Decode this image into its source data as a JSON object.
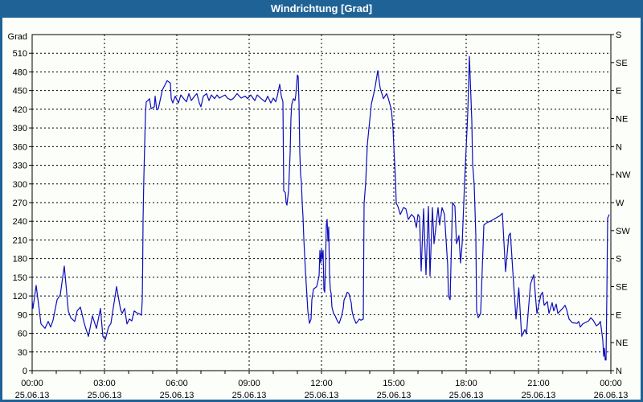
{
  "window": {
    "title": "Windrichtung [Grad]"
  },
  "colors": {
    "titlebar_bg": "#1f6396",
    "border": "#1f6396",
    "background": "#fcfefa",
    "line": "#0d0dbb",
    "grid": "#000000",
    "text": "#000000"
  },
  "chart_data": {
    "type": "line",
    "title": "Windrichtung [Grad]",
    "ylabel_left": "Grad",
    "ylim": [
      0,
      540
    ],
    "grid": "dotted",
    "legend": "none",
    "y_left_ticks": [
      0,
      30,
      60,
      90,
      120,
      150,
      180,
      210,
      240,
      270,
      300,
      330,
      360,
      390,
      420,
      450,
      480,
      510
    ],
    "y_right_ticks": [
      {
        "label": "S",
        "deg": 540
      },
      {
        "label": "SE",
        "deg": 495
      },
      {
        "label": "E",
        "deg": 450
      },
      {
        "label": "NE",
        "deg": 405
      },
      {
        "label": "N",
        "deg": 360
      },
      {
        "label": "NW",
        "deg": 315
      },
      {
        "label": "W",
        "deg": 270
      },
      {
        "label": "SW",
        "deg": 225
      },
      {
        "label": "S",
        "deg": 180
      },
      {
        "label": "SE",
        "deg": 135
      },
      {
        "label": "E",
        "deg": 90
      },
      {
        "label": "NE",
        "deg": 45
      },
      {
        "label": "N",
        "deg": 0
      }
    ],
    "x_axis": {
      "range_minutes": [
        0,
        1440
      ],
      "major_tick_minutes": 180,
      "minor_tick_minutes": 60,
      "labels": [
        {
          "minutes": 0,
          "time": "00:00",
          "date": "25.06.13"
        },
        {
          "minutes": 180,
          "time": "03:00",
          "date": "25.06.13"
        },
        {
          "minutes": 360,
          "time": "06:00",
          "date": "25.06.13"
        },
        {
          "minutes": 540,
          "time": "09:00",
          "date": "25.06.13"
        },
        {
          "minutes": 720,
          "time": "12:00",
          "date": "25.06.13"
        },
        {
          "minutes": 900,
          "time": "15:00",
          "date": "25.06.13"
        },
        {
          "minutes": 1080,
          "time": "18:00",
          "date": "25.06.13"
        },
        {
          "minutes": 1260,
          "time": "21:00",
          "date": "25.06.13"
        },
        {
          "minutes": 1440,
          "time": "00:00",
          "date": "26.06.13"
        }
      ]
    },
    "series": [
      {
        "name": "Windrichtung",
        "color": "#0d0dbb",
        "points": [
          [
            0,
            112
          ],
          [
            2,
            100
          ],
          [
            10,
            137
          ],
          [
            22,
            75
          ],
          [
            32,
            68
          ],
          [
            40,
            79
          ],
          [
            46,
            70
          ],
          [
            52,
            81
          ],
          [
            62,
            114
          ],
          [
            70,
            122
          ],
          [
            76,
            150
          ],
          [
            80,
            168
          ],
          [
            90,
            96
          ],
          [
            96,
            85
          ],
          [
            106,
            79
          ],
          [
            112,
            96
          ],
          [
            120,
            102
          ],
          [
            130,
            75
          ],
          [
            140,
            55
          ],
          [
            150,
            88
          ],
          [
            160,
            68
          ],
          [
            170,
            100
          ],
          [
            176,
            55
          ],
          [
            182,
            50
          ],
          [
            190,
            70
          ],
          [
            196,
            76
          ],
          [
            210,
            135
          ],
          [
            220,
            98
          ],
          [
            224,
            92
          ],
          [
            230,
            100
          ],
          [
            236,
            75
          ],
          [
            242,
            83
          ],
          [
            248,
            80
          ],
          [
            254,
            96
          ],
          [
            260,
            93
          ],
          [
            268,
            91
          ],
          [
            272,
            89
          ],
          [
            274,
            114
          ],
          [
            275,
            165
          ],
          [
            276,
            243
          ],
          [
            278,
            311
          ],
          [
            280,
            363
          ],
          [
            282,
            415
          ],
          [
            284,
            432
          ],
          [
            288,
            434
          ],
          [
            292,
            437
          ],
          [
            296,
            421
          ],
          [
            304,
            424
          ],
          [
            306,
            441
          ],
          [
            310,
            419
          ],
          [
            314,
            421
          ],
          [
            324,
            451
          ],
          [
            336,
            466
          ],
          [
            344,
            462
          ],
          [
            346,
            437
          ],
          [
            350,
            430
          ],
          [
            356,
            441
          ],
          [
            364,
            430
          ],
          [
            370,
            443
          ],
          [
            376,
            438
          ],
          [
            384,
            432
          ],
          [
            390,
            445
          ],
          [
            396,
            434
          ],
          [
            404,
            441
          ],
          [
            410,
            445
          ],
          [
            416,
            430
          ],
          [
            420,
            424
          ],
          [
            426,
            441
          ],
          [
            434,
            445
          ],
          [
            440,
            434
          ],
          [
            446,
            443
          ],
          [
            454,
            437
          ],
          [
            460,
            443
          ],
          [
            466,
            438
          ],
          [
            474,
            441
          ],
          [
            480,
            443
          ],
          [
            486,
            438
          ],
          [
            494,
            435
          ],
          [
            500,
            437
          ],
          [
            510,
            445
          ],
          [
            520,
            438
          ],
          [
            530,
            441
          ],
          [
            536,
            437
          ],
          [
            544,
            443
          ],
          [
            554,
            434
          ],
          [
            560,
            443
          ],
          [
            570,
            437
          ],
          [
            580,
            432
          ],
          [
            586,
            441
          ],
          [
            594,
            430
          ],
          [
            600,
            438
          ],
          [
            606,
            432
          ],
          [
            610,
            441
          ],
          [
            616,
            460
          ],
          [
            620,
            441
          ],
          [
            624,
            432
          ],
          [
            626,
            289
          ],
          [
            630,
            286
          ],
          [
            632,
            270
          ],
          [
            634,
            266
          ],
          [
            638,
            289
          ],
          [
            642,
            350
          ],
          [
            644,
            406
          ],
          [
            646,
            428
          ],
          [
            650,
            437
          ],
          [
            654,
            434
          ],
          [
            656,
            443
          ],
          [
            660,
            475
          ],
          [
            662,
            473
          ],
          [
            664,
            430
          ],
          [
            666,
            350
          ],
          [
            668,
            315
          ],
          [
            670,
            302
          ],
          [
            672,
            269
          ],
          [
            674,
            247
          ],
          [
            676,
            212
          ],
          [
            680,
            160
          ],
          [
            684,
            118
          ],
          [
            686,
            96
          ],
          [
            690,
            76
          ],
          [
            694,
            83
          ],
          [
            696,
            114
          ],
          [
            700,
            131
          ],
          [
            708,
            135
          ],
          [
            714,
            152
          ],
          [
            716,
            193
          ],
          [
            718,
            173
          ],
          [
            720,
            195
          ],
          [
            722,
            180
          ],
          [
            724,
            193
          ],
          [
            726,
            130
          ],
          [
            728,
            126
          ],
          [
            730,
            173
          ],
          [
            732,
            234
          ],
          [
            734,
            243
          ],
          [
            736,
            208
          ],
          [
            738,
            231
          ],
          [
            740,
            152
          ],
          [
            742,
            130
          ],
          [
            744,
            124
          ],
          [
            746,
            102
          ],
          [
            750,
            92
          ],
          [
            754,
            88
          ],
          [
            760,
            79
          ],
          [
            764,
            76
          ],
          [
            770,
            88
          ],
          [
            774,
            100
          ],
          [
            776,
            113
          ],
          [
            784,
            126
          ],
          [
            788,
            124
          ],
          [
            794,
            109
          ],
          [
            796,
            96
          ],
          [
            800,
            85
          ],
          [
            804,
            79
          ],
          [
            806,
            76
          ],
          [
            810,
            79
          ],
          [
            814,
            83
          ],
          [
            818,
            81
          ],
          [
            824,
            83
          ],
          [
            826,
            269
          ],
          [
            830,
            302
          ],
          [
            834,
            363
          ],
          [
            844,
            428
          ],
          [
            850,
            445
          ],
          [
            854,
            458
          ],
          [
            860,
            482
          ],
          [
            866,
            454
          ],
          [
            874,
            437
          ],
          [
            882,
            445
          ],
          [
            886,
            438
          ],
          [
            894,
            419
          ],
          [
            898,
            389
          ],
          [
            900,
            359
          ],
          [
            904,
            309
          ],
          [
            906,
            269
          ],
          [
            910,
            264
          ],
          [
            916,
            251
          ],
          [
            924,
            262
          ],
          [
            930,
            260
          ],
          [
            936,
            243
          ],
          [
            944,
            251
          ],
          [
            950,
            247
          ],
          [
            956,
            230
          ],
          [
            960,
            251
          ],
          [
            964,
            247
          ],
          [
            968,
            160
          ],
          [
            974,
            260
          ],
          [
            980,
            154
          ],
          [
            986,
            264
          ],
          [
            990,
            152
          ],
          [
            996,
            262
          ],
          [
            1000,
            204
          ],
          [
            1010,
            262
          ],
          [
            1014,
            234
          ],
          [
            1020,
            262
          ],
          [
            1026,
            251
          ],
          [
            1034,
            169
          ],
          [
            1036,
            120
          ],
          [
            1040,
            114
          ],
          [
            1046,
            270
          ],
          [
            1052,
            264
          ],
          [
            1056,
            204
          ],
          [
            1062,
            217
          ],
          [
            1066,
            173
          ],
          [
            1070,
            204
          ],
          [
            1076,
            302
          ],
          [
            1084,
            415
          ],
          [
            1088,
            505
          ],
          [
            1094,
            402
          ],
          [
            1096,
            333
          ],
          [
            1100,
            298
          ],
          [
            1104,
            217
          ],
          [
            1106,
            96
          ],
          [
            1110,
            85
          ],
          [
            1116,
            92
          ],
          [
            1124,
            234
          ],
          [
            1132,
            238
          ],
          [
            1140,
            240
          ],
          [
            1148,
            243
          ],
          [
            1156,
            246
          ],
          [
            1164,
            249
          ],
          [
            1170,
            253
          ],
          [
            1178,
            159
          ],
          [
            1186,
            217
          ],
          [
            1190,
            221
          ],
          [
            1196,
            160
          ],
          [
            1200,
            121
          ],
          [
            1204,
            83
          ],
          [
            1211,
            133
          ],
          [
            1218,
            55
          ],
          [
            1226,
            66
          ],
          [
            1230,
            59
          ],
          [
            1240,
            139
          ],
          [
            1248,
            154
          ],
          [
            1256,
            92
          ],
          [
            1266,
            122
          ],
          [
            1270,
            126
          ],
          [
            1274,
            105
          ],
          [
            1282,
            111
          ],
          [
            1286,
            92
          ],
          [
            1294,
            109
          ],
          [
            1298,
            96
          ],
          [
            1304,
            107
          ],
          [
            1308,
            92
          ],
          [
            1314,
            96
          ],
          [
            1320,
            100
          ],
          [
            1326,
            105
          ],
          [
            1330,
            98
          ],
          [
            1336,
            83
          ],
          [
            1344,
            77
          ],
          [
            1356,
            76
          ],
          [
            1360,
            79
          ],
          [
            1364,
            70
          ],
          [
            1370,
            75
          ],
          [
            1385,
            80
          ],
          [
            1390,
            85
          ],
          [
            1396,
            81
          ],
          [
            1404,
            72
          ],
          [
            1410,
            75
          ],
          [
            1414,
            79
          ],
          [
            1420,
            49
          ],
          [
            1422,
            23
          ],
          [
            1424,
            36
          ],
          [
            1426,
            17
          ],
          [
            1428,
            17
          ],
          [
            1430,
            120
          ],
          [
            1432,
            245
          ],
          [
            1436,
            251
          ]
        ]
      }
    ]
  }
}
